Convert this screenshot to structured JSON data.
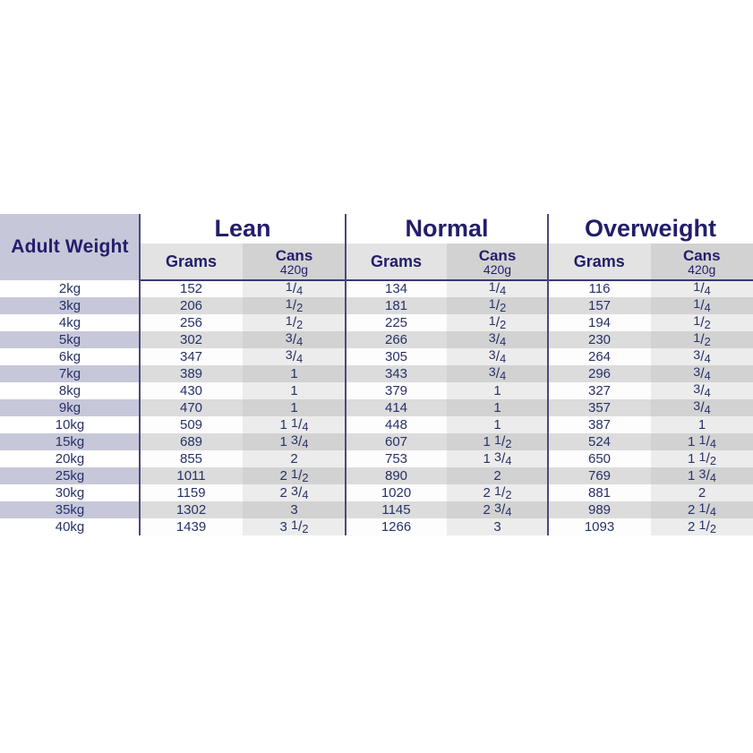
{
  "colors": {
    "navy_header": "#221e6b",
    "navy_data": "#273167",
    "lavender": "#c7c7da",
    "subheader_grams_gray": "#e3e3e3",
    "subheader_cans_gray": "#d2d2d2",
    "stripe_gray": "#dcdcdc",
    "cans_light_gray": "#ececec",
    "divider_navy": "#4a4a7a"
  },
  "table": {
    "corner_label": "Adult Weight",
    "groups": [
      {
        "name": "Lean",
        "grams_label": "Grams",
        "cans_label": "Cans",
        "can_size": "420g"
      },
      {
        "name": "Normal",
        "grams_label": "Grams",
        "cans_label": "Cans",
        "can_size": "420g"
      },
      {
        "name": "Overweight",
        "grams_label": "Grams",
        "cans_label": "Cans",
        "can_size": "420g"
      }
    ]
  },
  "chart_data": {
    "type": "table",
    "title": "Adult Weight feeding guide",
    "column_groups": [
      "Lean",
      "Normal",
      "Overweight"
    ],
    "columns": [
      "Adult Weight",
      "Lean Grams",
      "Lean Cans 420g",
      "Normal Grams",
      "Normal Cans 420g",
      "Overweight Grams",
      "Overweight Cans 420g"
    ],
    "rows": [
      [
        "2kg",
        "152",
        "1/4",
        "134",
        "1/4",
        "116",
        "1/4"
      ],
      [
        "3kg",
        "206",
        "1/2",
        "181",
        "1/2",
        "157",
        "1/4"
      ],
      [
        "4kg",
        "256",
        "1/2",
        "225",
        "1/2",
        "194",
        "1/2"
      ],
      [
        "5kg",
        "302",
        "3/4",
        "266",
        "3/4",
        "230",
        "1/2"
      ],
      [
        "6kg",
        "347",
        "3/4",
        "305",
        "3/4",
        "264",
        "3/4"
      ],
      [
        "7kg",
        "389",
        "1",
        "343",
        "3/4",
        "296",
        "3/4"
      ],
      [
        "8kg",
        "430",
        "1",
        "379",
        "1",
        "327",
        "3/4"
      ],
      [
        "9kg",
        "470",
        "1",
        "414",
        "1",
        "357",
        "3/4"
      ],
      [
        "10kg",
        "509",
        "1 1/4",
        "448",
        "1",
        "387",
        "1"
      ],
      [
        "15kg",
        "689",
        "1 3/4",
        "607",
        "1 1/2",
        "524",
        "1 1/4"
      ],
      [
        "20kg",
        "855",
        "2",
        "753",
        "1 3/4",
        "650",
        "1 1/2"
      ],
      [
        "25kg",
        "1011",
        "2 1/2",
        "890",
        "2",
        "769",
        "1 3/4"
      ],
      [
        "30kg",
        "1159",
        "2 3/4",
        "1020",
        "2 1/2",
        "881",
        "2"
      ],
      [
        "35kg",
        "1302",
        "3",
        "1145",
        "2 3/4",
        "989",
        "2 1/4"
      ],
      [
        "40kg",
        "1439",
        "3 1/2",
        "1266",
        "3",
        "1093",
        "2 1/2"
      ]
    ]
  }
}
